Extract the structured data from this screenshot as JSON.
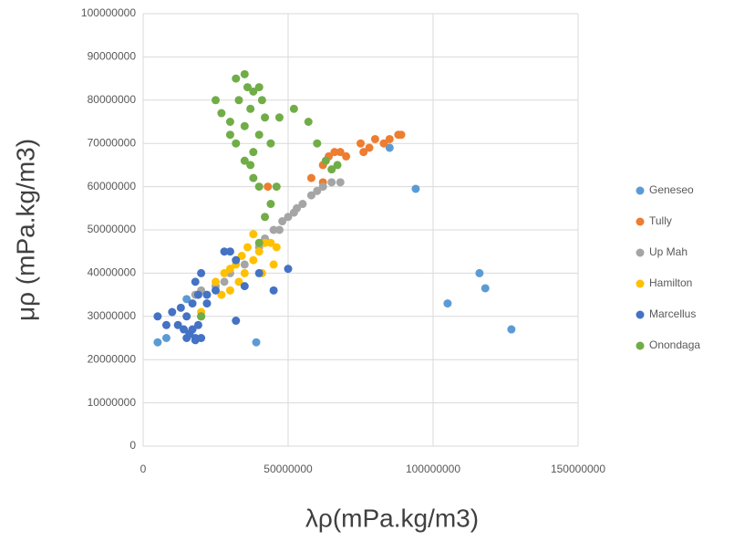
{
  "chart_data": {
    "type": "scatter",
    "x_label": "λρ(mPa.kg/m3)",
    "y_label": "μρ (mPa.kg/m3)",
    "xlim": [
      0,
      150000000
    ],
    "xticks": [
      0,
      50000000,
      100000000,
      150000000
    ],
    "ylim": [
      0,
      100000000
    ],
    "yticks": [
      0,
      10000000,
      20000000,
      30000000,
      40000000,
      50000000,
      60000000,
      70000000,
      80000000,
      90000000,
      100000000
    ],
    "grid": true,
    "legend": "right",
    "series": [
      {
        "name": "Geneseo",
        "color": "#5b9bd5",
        "x": [
          5000000,
          8000000,
          39000000,
          85000000,
          94000000,
          105000000,
          116000000,
          118000000,
          127000000,
          15000000
        ],
        "values": [
          24000000,
          25000000,
          24000000,
          69000000,
          59500000,
          33000000,
          40000000,
          36500000,
          27000000,
          34000000
        ]
      },
      {
        "name": "Tully",
        "color": "#ed7d31",
        "x": [
          43000000,
          58000000,
          62000000,
          64000000,
          66000000,
          70000000,
          75000000,
          78000000,
          80000000,
          83000000,
          85000000,
          88000000,
          89000000,
          76000000,
          68000000,
          62000000
        ],
        "values": [
          60000000,
          62000000,
          65000000,
          67000000,
          68000000,
          67000000,
          70000000,
          69000000,
          71000000,
          70000000,
          71000000,
          72000000,
          72000000,
          68000000,
          68000000,
          61000000
        ]
      },
      {
        "name": "Up Mah",
        "color": "#a5a5a5",
        "x": [
          18000000,
          25000000,
          30000000,
          35000000,
          40000000,
          42000000,
          45000000,
          48000000,
          50000000,
          52000000,
          55000000,
          58000000,
          60000000,
          62000000,
          65000000,
          68000000,
          47000000,
          53000000,
          28000000,
          20000000
        ],
        "values": [
          35000000,
          37000000,
          40000000,
          42000000,
          46000000,
          48000000,
          50000000,
          52000000,
          53000000,
          54000000,
          56000000,
          58000000,
          59000000,
          60000000,
          61000000,
          61000000,
          50000000,
          55000000,
          38000000,
          36000000
        ]
      },
      {
        "name": "Hamilton",
        "color": "#ffc000",
        "x": [
          25000000,
          28000000,
          30000000,
          32000000,
          34000000,
          35000000,
          38000000,
          40000000,
          42000000,
          44000000,
          46000000,
          45000000,
          36000000,
          38000000,
          30000000,
          27000000,
          33000000,
          41000000,
          20000000
        ],
        "values": [
          38000000,
          40000000,
          41000000,
          42000000,
          44000000,
          40000000,
          43000000,
          45000000,
          47000000,
          47000000,
          46000000,
          42000000,
          46000000,
          49000000,
          36000000,
          35000000,
          38000000,
          40000000,
          31000000
        ]
      },
      {
        "name": "Marcellus",
        "color": "#4472c4",
        "x": [
          5000000,
          8000000,
          10000000,
          12000000,
          14000000,
          15000000,
          16000000,
          17000000,
          18000000,
          19000000,
          20000000,
          15000000,
          17000000,
          19000000,
          20000000,
          18000000,
          22000000,
          25000000,
          28000000,
          30000000,
          32000000,
          35000000,
          40000000,
          45000000,
          50000000,
          32000000,
          22000000,
          13000000,
          18000000,
          20000000
        ],
        "values": [
          30000000,
          28000000,
          31000000,
          28000000,
          27000000,
          25000000,
          26000000,
          27000000,
          25000000,
          28000000,
          30000000,
          30000000,
          33000000,
          35000000,
          40000000,
          38000000,
          35000000,
          36000000,
          45000000,
          45000000,
          43000000,
          37000000,
          40000000,
          36000000,
          41000000,
          29000000,
          33000000,
          32000000,
          24500000,
          25000000
        ]
      },
      {
        "name": "Onondaga",
        "color": "#70ad47",
        "x": [
          25000000,
          27000000,
          30000000,
          32000000,
          33000000,
          35000000,
          36000000,
          37000000,
          38000000,
          40000000,
          41000000,
          42000000,
          30000000,
          32000000,
          35000000,
          38000000,
          40000000,
          44000000,
          37000000,
          38000000,
          40000000,
          35000000,
          47000000,
          52000000,
          57000000,
          60000000,
          63000000,
          65000000,
          67000000,
          44000000,
          42000000,
          40000000,
          20000000,
          46000000
        ],
        "values": [
          80000000,
          77000000,
          75000000,
          85000000,
          80000000,
          86000000,
          83000000,
          78000000,
          82000000,
          83000000,
          80000000,
          76000000,
          72000000,
          70000000,
          74000000,
          68000000,
          72000000,
          70000000,
          65000000,
          62000000,
          60000000,
          66000000,
          76000000,
          78000000,
          75000000,
          70000000,
          66000000,
          64000000,
          65000000,
          56000000,
          53000000,
          47000000,
          30000000,
          60000000
        ]
      }
    ]
  }
}
